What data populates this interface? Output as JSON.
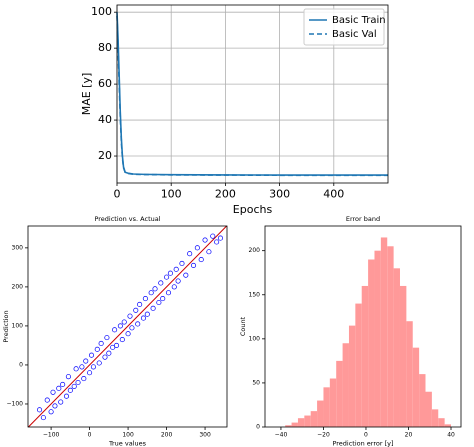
{
  "chart_data": [
    {
      "type": "line",
      "xlabel": "Epochs",
      "ylabel": "MAE [y]",
      "x": [
        0,
        2,
        4,
        6,
        8,
        10,
        12,
        15,
        20,
        30,
        50,
        100,
        200,
        300,
        400,
        500
      ],
      "series": [
        {
          "name": "Basic Train",
          "color": "#1f77b4",
          "dash": "solid",
          "values": [
            100,
            85,
            65,
            45,
            30,
            20,
            14,
            11,
            10.5,
            10,
            9.8,
            9.6,
            9.5,
            9.4,
            9.4,
            9.4
          ]
        },
        {
          "name": "Basic Val",
          "color": "#1f77b4",
          "dash": "dashed",
          "values": [
            98,
            80,
            60,
            42,
            28,
            19,
            13.5,
            11,
            10.3,
            9.9,
            9.7,
            9.5,
            9.4,
            9.3,
            9.3,
            9.3
          ]
        }
      ],
      "xlim": [
        0,
        500
      ],
      "ylim": [
        5,
        104
      ],
      "xticks": [
        0,
        100,
        200,
        300,
        400
      ],
      "yticks": [
        20,
        40,
        60,
        80,
        100
      ],
      "grid": true,
      "legend": "upper right"
    },
    {
      "type": "scatter",
      "title": "Prediction vs. Actual",
      "xlabel": "True values",
      "ylabel": "Prediction",
      "x": [
        -130,
        -120,
        -110,
        -100,
        -95,
        -90,
        -80,
        -75,
        -70,
        -60,
        -55,
        -50,
        -40,
        -35,
        -30,
        -20,
        -15,
        -10,
        0,
        5,
        10,
        20,
        25,
        30,
        40,
        45,
        50,
        60,
        65,
        70,
        80,
        85,
        90,
        100,
        105,
        110,
        120,
        125,
        130,
        140,
        145,
        150,
        160,
        165,
        170,
        180,
        185,
        190,
        200,
        205,
        210,
        220,
        225,
        230,
        240,
        250,
        260,
        270,
        280,
        290,
        300,
        310,
        320,
        330,
        340
      ],
      "values": [
        -115,
        -135,
        -90,
        -120,
        -70,
        -105,
        -60,
        -95,
        -50,
        -80,
        -30,
        -65,
        -55,
        -10,
        -45,
        -5,
        -35,
        10,
        -20,
        25,
        -5,
        40,
        5,
        55,
        20,
        70,
        30,
        45,
        90,
        50,
        100,
        65,
        110,
        80,
        125,
        95,
        140,
        105,
        155,
        120,
        170,
        130,
        185,
        145,
        195,
        160,
        210,
        170,
        225,
        185,
        235,
        200,
        245,
        215,
        260,
        230,
        285,
        255,
        300,
        270,
        320,
        290,
        330,
        315,
        325
      ],
      "color": "#0000ff",
      "identity_line": true,
      "identity_line_color": "#cc0000",
      "xlim": [
        -160,
        357
      ],
      "ylim": [
        -159,
        356
      ],
      "xticks": [
        {
          "value": -100,
          "label": "−100"
        },
        0,
        100,
        200,
        300
      ],
      "yticks": [
        {
          "value": -100,
          "label": "−100"
        },
        0,
        100,
        200,
        300
      ]
    },
    {
      "type": "histogram",
      "title": "Error band",
      "xlabel": "Prediction error [y]",
      "ylabel": "Count",
      "bins": [
        -38,
        -35,
        -32,
        -29,
        -26,
        -23,
        -20,
        -17,
        -14,
        -11,
        -8,
        -5,
        -2,
        1,
        4,
        7,
        10,
        13,
        16,
        19,
        22,
        25,
        28,
        31,
        34,
        37,
        40
      ],
      "values": [
        2,
        5,
        10,
        13,
        18,
        30,
        45,
        55,
        75,
        95,
        115,
        140,
        160,
        190,
        200,
        215,
        205,
        180,
        160,
        120,
        90,
        60,
        40,
        20,
        10,
        3
      ],
      "color": "#ff9999",
      "xlim": [
        -47.5,
        44.7
      ],
      "ylim": [
        0,
        228
      ],
      "xticks": [
        {
          "value": -40,
          "label": "−40"
        },
        {
          "value": -20,
          "label": "−20"
        },
        0,
        20,
        40
      ],
      "yticks": [
        0,
        50,
        100,
        150,
        200
      ]
    }
  ]
}
